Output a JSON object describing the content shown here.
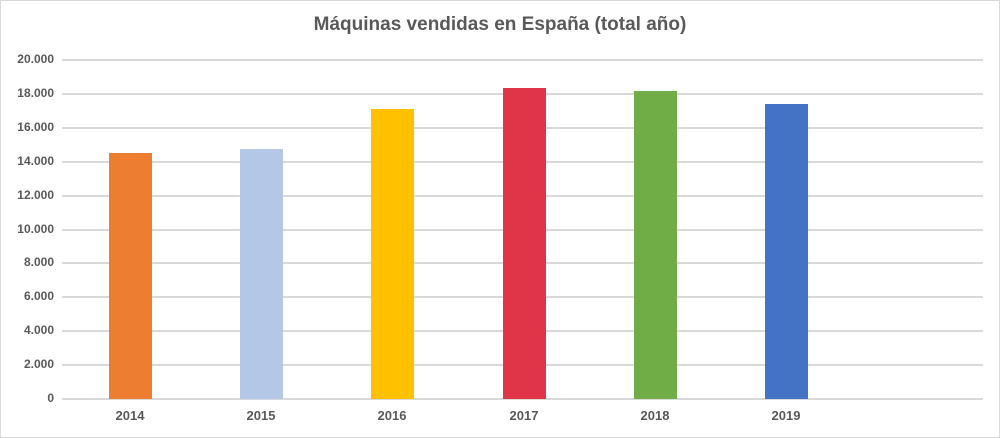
{
  "chart_data": {
    "type": "bar",
    "title": "Máquinas vendidas en España (total año)",
    "xlabel": "",
    "ylabel": "",
    "categories": [
      "2014",
      "2015",
      "2016",
      "2017",
      "2018",
      "2019"
    ],
    "values": [
      14500,
      14750,
      17100,
      18350,
      18170,
      17400
    ],
    "colors": [
      "#ed7d31",
      "#b4c7e7",
      "#ffc000",
      "#e03448",
      "#70ad47",
      "#4472c4"
    ],
    "ylim": [
      0,
      20000
    ],
    "yticks": [
      "0",
      "2.000",
      "4.000",
      "6.000",
      "8.000",
      "10.000",
      "12.000",
      "14.000",
      "16.000",
      "18.000",
      "20.000"
    ],
    "grid": true,
    "legend": "none"
  }
}
